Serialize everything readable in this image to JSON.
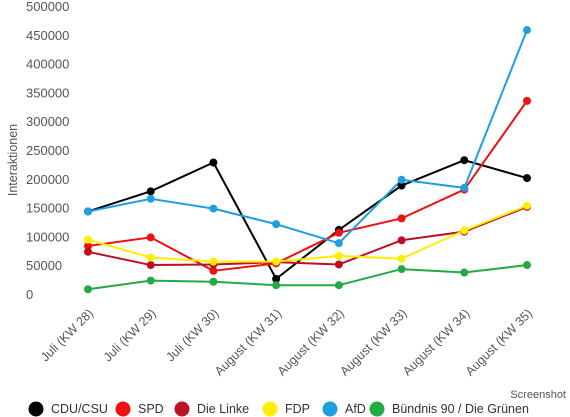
{
  "chart_data": {
    "type": "line",
    "ylabel": "Interaktionen",
    "xlabel": "",
    "ylim": [
      0,
      500000
    ],
    "yticks": [
      0,
      50000,
      100000,
      150000,
      200000,
      250000,
      300000,
      350000,
      400000,
      450000,
      500000
    ],
    "categories": [
      "Juli (KW 28)",
      "Juli (KW 29)",
      "Juli (KW 30)",
      "August (KW 31)",
      "August (KW 32)",
      "August (KW 33)",
      "August (KW 34)",
      "August (KW 35)"
    ],
    "grid": false,
    "legend_position": "bottom",
    "series": [
      {
        "name": "CDU/CSU",
        "color": "#000000",
        "values": [
          145000,
          180000,
          230000,
          28000,
          113000,
          190000,
          234000,
          203000
        ]
      },
      {
        "name": "SPD",
        "color": "#ee1111",
        "values": [
          85000,
          100000,
          42000,
          55000,
          108000,
          133000,
          183000,
          337000
        ]
      },
      {
        "name": "Die Linke",
        "color": "#bb1122",
        "values": [
          75000,
          52000,
          53000,
          57000,
          53000,
          95000,
          110000,
          153000
        ]
      },
      {
        "name": "FDP",
        "color": "#ffee00",
        "values": [
          96000,
          65000,
          58000,
          58000,
          68000,
          63000,
          112000,
          155000
        ]
      },
      {
        "name": "AfD",
        "color": "#1f9ee0",
        "values": [
          145000,
          167000,
          150000,
          123000,
          90000,
          200000,
          186000,
          460000
        ]
      },
      {
        "name": "Bündnis 90 / Die Grünen",
        "color": "#22aa44",
        "values": [
          10000,
          25000,
          23000,
          17000,
          17000,
          45000,
          39000,
          52000
        ]
      }
    ]
  },
  "watermark": "Screenshot"
}
